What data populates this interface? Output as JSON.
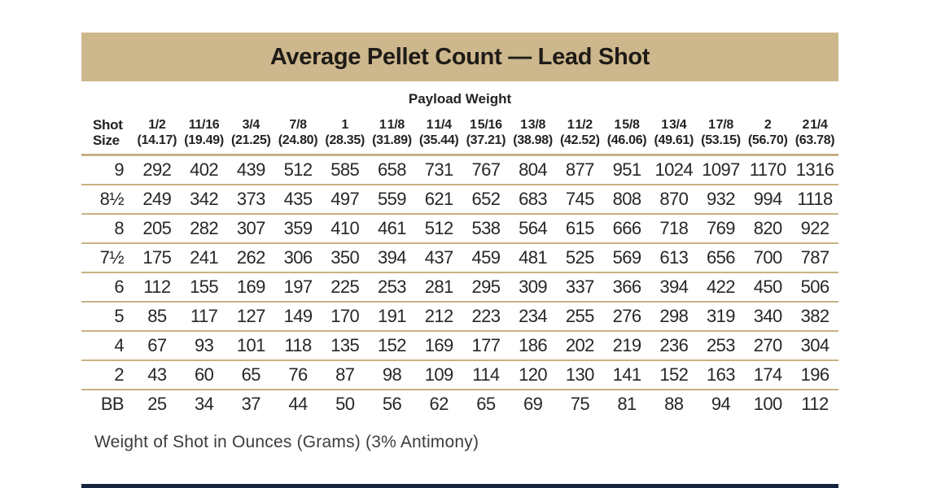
{
  "title": "Average Pellet Count — Lead Shot",
  "payload_heading": "Payload Weight",
  "row_header": {
    "line1": "Shot",
    "line2": "Size"
  },
  "columns": [
    {
      "oz": "1/2",
      "grams": "(14.17)"
    },
    {
      "oz": "11/16",
      "grams": "(19.49)"
    },
    {
      "oz": "3/4",
      "grams": "(21.25)"
    },
    {
      "oz": "7/8",
      "grams": "(24.80)"
    },
    {
      "oz": "1",
      "grams": "(28.35)"
    },
    {
      "oz": "1 1/8",
      "grams": "(31.89)"
    },
    {
      "oz": "1 1/4",
      "grams": "(35.44)"
    },
    {
      "oz": "1 5/16",
      "grams": "(37.21)"
    },
    {
      "oz": "1 3/8",
      "grams": "(38.98)"
    },
    {
      "oz": "1 1/2",
      "grams": "(42.52)"
    },
    {
      "oz": "1 5/8",
      "grams": "(46.06)"
    },
    {
      "oz": "1 3/4",
      "grams": "(49.61)"
    },
    {
      "oz": "1 7/8",
      "grams": "(53.15)"
    },
    {
      "oz": "2",
      "grams": "(56.70)"
    },
    {
      "oz": "2 1/4",
      "grams": "(63.78)"
    }
  ],
  "rows": [
    {
      "shot_size": "9",
      "counts": [
        292,
        402,
        439,
        512,
        585,
        658,
        731,
        767,
        804,
        877,
        951,
        1024,
        1097,
        1170,
        1316
      ]
    },
    {
      "shot_size": "8½",
      "counts": [
        249,
        342,
        373,
        435,
        497,
        559,
        621,
        652,
        683,
        745,
        808,
        870,
        932,
        994,
        1118
      ]
    },
    {
      "shot_size": "8",
      "counts": [
        205,
        282,
        307,
        359,
        410,
        461,
        512,
        538,
        564,
        615,
        666,
        718,
        769,
        820,
        922
      ]
    },
    {
      "shot_size": "7½",
      "counts": [
        175,
        241,
        262,
        306,
        350,
        394,
        437,
        459,
        481,
        525,
        569,
        613,
        656,
        700,
        787
      ]
    },
    {
      "shot_size": "6",
      "counts": [
        112,
        155,
        169,
        197,
        225,
        253,
        281,
        295,
        309,
        337,
        366,
        394,
        422,
        450,
        506
      ]
    },
    {
      "shot_size": "5",
      "counts": [
        85,
        117,
        127,
        149,
        170,
        191,
        212,
        223,
        234,
        255,
        276,
        298,
        319,
        340,
        382
      ]
    },
    {
      "shot_size": "4",
      "counts": [
        67,
        93,
        101,
        118,
        135,
        152,
        169,
        177,
        186,
        202,
        219,
        236,
        253,
        270,
        304
      ]
    },
    {
      "shot_size": "2",
      "counts": [
        43,
        60,
        65,
        76,
        87,
        98,
        109,
        114,
        120,
        130,
        141,
        152,
        163,
        174,
        196
      ]
    },
    {
      "shot_size": "BB",
      "counts": [
        25,
        34,
        37,
        44,
        50,
        56,
        62,
        65,
        69,
        75,
        81,
        88,
        94,
        100,
        112
      ]
    }
  ],
  "footnote": "Weight of Shot in Ounces (Grams) (3% Antimony)",
  "colors": {
    "title_bar_tan": "#cdb78d",
    "rule_tan": "#c9b183",
    "bottom_bar_navy": "#16233f",
    "text_dark": "#262222"
  }
}
